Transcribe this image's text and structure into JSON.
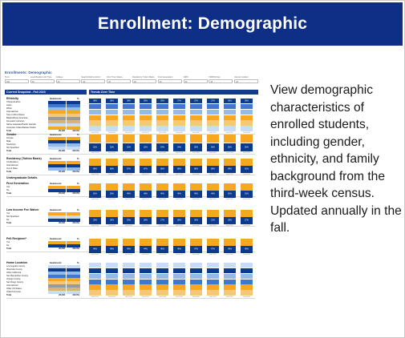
{
  "slide": {
    "title": "Enrollment: Demographic",
    "description": "View demographic characteristics of enrolled students, including gender, ethnicity, and family background from the third-week census. Updated annually in the fall."
  },
  "dashboard": {
    "title": "Enrollments: Demographic",
    "filters": [
      {
        "label": "Term",
        "value": "Fall"
      },
      {
        "label": "Level/Student Attr Type",
        "value": "All"
      },
      {
        "label": "College",
        "value": "All"
      },
      {
        "label": "Search/Add to Admit",
        "value": "All"
      },
      {
        "label": "First Time Status",
        "value": "All"
      },
      {
        "label": "Residency Tuition Basis",
        "value": "All"
      },
      {
        "label": "First Generation",
        "value": "All"
      },
      {
        "label": "URM",
        "value": "All"
      },
      {
        "label": "IS/IB/Citizen",
        "value": "All"
      },
      {
        "label": "Honors student",
        "value": "All"
      }
    ],
    "snapshot_header": "Current Snapshot - Fall 2023",
    "trends_header": "Trends Over Time",
    "column_headers": {
      "headcount": "Headcount",
      "pct": "%"
    },
    "colors": {
      "navy": "#0c3a8c",
      "blue": "#3e78cf",
      "lightblue": "#92bbe8",
      "paleblue": "#c8dcf3",
      "orange": "#f7a823",
      "peach": "#f5c878",
      "grey": "#9a9a9a",
      "tan": "#d8b577",
      "header": "#123a8f"
    },
    "years": [
      "Fall 2014",
      "Fall 2015",
      "Fall 2016",
      "Fall 2017",
      "Fall 2018",
      "Fall 2019",
      "Fall 2020",
      "Fall 2021",
      "Fall 2022",
      "Fall 2023"
    ],
    "groups_title": "Undergraduate Details",
    "sections": [
      {
        "title": "Ethnicity",
        "rows": [
          {
            "label": "Chicano/Latino",
            "value": "",
            "pct": ""
          },
          {
            "label": "Asian",
            "value": "",
            "pct": ""
          },
          {
            "label": "White",
            "value": "",
            "pct": ""
          },
          {
            "label": "International",
            "value": "",
            "pct": ""
          },
          {
            "label": "Two or More Races",
            "value": "",
            "pct": ""
          },
          {
            "label": "Black/African American",
            "value": "",
            "pct": ""
          },
          {
            "label": "Domestic Unknown",
            "value": "",
            "pct": ""
          },
          {
            "label": "Native Hawaiian/Pacific Islander",
            "value": "",
            "pct": ""
          },
          {
            "label": "American Indian/Alaskan Native",
            "value": "",
            "pct": ""
          },
          {
            "label": "Total",
            "value": "26,426",
            "pct": "100.0%"
          }
        ],
        "cell_colors": [
          "navy",
          "blue",
          "lightblue",
          "orange",
          "peach",
          "grey",
          "tan",
          "paleblue",
          "orange",
          "none"
        ],
        "bars": [
          "navy",
          "blue",
          "lightblue",
          "orange",
          "peach",
          "paleblue"
        ],
        "labels": [
          "38%",
          "38%",
          "38%",
          "39%",
          "39%",
          "37%",
          "37%",
          "37%",
          "36%",
          "36%"
        ]
      },
      {
        "title": "Gender",
        "rows": [
          {
            "label": "Female",
            "value": "",
            "pct": ""
          },
          {
            "label": "Male",
            "value": "",
            "pct": ""
          },
          {
            "label": "Nonbinary",
            "value": "",
            "pct": ""
          },
          {
            "label": "Not Specified",
            "value": "",
            "pct": ""
          },
          {
            "label": "Total",
            "value": "26,426",
            "pct": "100.0%"
          }
        ],
        "cell_colors": [
          "orange",
          "navy",
          "lightblue",
          "paleblue",
          "none"
        ],
        "bars": [
          "orange",
          "navy"
        ],
        "labels": [
          "52%",
          "52%",
          "52%",
          "53%",
          "54%",
          "54%",
          "55%",
          "56%",
          "56%",
          "56%"
        ]
      },
      {
        "title": "Residency (Tuition Basis)",
        "rows": [
          {
            "label": "CA Resident",
            "value": "",
            "pct": ""
          },
          {
            "label": "International",
            "value": "",
            "pct": ""
          },
          {
            "label": "Out of State",
            "value": "",
            "pct": ""
          },
          {
            "label": "Total",
            "value": "26,426",
            "pct": "100.0%"
          }
        ],
        "cell_colors": [
          "orange",
          "navy",
          "lightblue",
          "none"
        ],
        "bars": [
          "orange",
          "navy"
        ],
        "labels": [
          "88%",
          "88%",
          "87%",
          "87%",
          "88%",
          "88%",
          "88%",
          "88%",
          "89%",
          "91%"
        ]
      },
      {
        "title": "First Generation",
        "rows": [
          {
            "label": "Yes",
            "value": "",
            "pct": ""
          },
          {
            "label": "No",
            "value": "",
            "pct": ""
          },
          {
            "label": "Total",
            "value": "22,646",
            "pct": "100.0%"
          }
        ],
        "cell_colors": [
          "orange",
          "navy",
          "none"
        ],
        "bars": [
          "orange",
          "navy"
        ],
        "labels": [
          "50%",
          "50%",
          "49%",
          "48%",
          "49%",
          "49%",
          "49%",
          "49%",
          "50%",
          "51%"
        ]
      },
      {
        "title": "Low Income Fee Waiver",
        "rows": [
          {
            "label": "Yes",
            "value": "",
            "pct": ""
          },
          {
            "label": "Not Specified",
            "value": "",
            "pct": ""
          },
          {
            "label": "No",
            "value": "",
            "pct": ""
          },
          {
            "label": "Total",
            "value": "22,646",
            "pct": "100.0%"
          }
        ],
        "cell_colors": [
          "orange",
          "paleblue",
          "navy",
          "none"
        ],
        "bars": [
          "orange",
          "navy"
        ],
        "labels": [
          "29%",
          "30%",
          "29%",
          "28%",
          "27%",
          "28%",
          "30%",
          "31%",
          "28%",
          "27%"
        ]
      },
      {
        "title": "Pell Recipient*",
        "rows": [
          {
            "label": "Yes",
            "value": "",
            "pct": ""
          },
          {
            "label": "No",
            "value": "",
            "pct": ""
          },
          {
            "label": "Total",
            "value": "22,646",
            "pct": "100.0%"
          }
        ],
        "cell_colors": [
          "orange",
          "navy",
          "none"
        ],
        "bars": [
          "orange",
          "navy"
        ],
        "labels": [
          "46%",
          "46%",
          "45%",
          "44%",
          "45%",
          "46%",
          "47%",
          "47%",
          "45%",
          "45%"
        ]
      },
      {
        "title": "Home Location",
        "rows": [
          {
            "label": "Los Angeles County",
            "value": "",
            "pct": ""
          },
          {
            "label": "Riverside County",
            "value": "",
            "pct": ""
          },
          {
            "label": "Other California",
            "value": "",
            "pct": ""
          },
          {
            "label": "San Bernardino County",
            "value": "",
            "pct": ""
          },
          {
            "label": "Orange County",
            "value": "",
            "pct": ""
          },
          {
            "label": "San Diego County",
            "value": "",
            "pct": ""
          },
          {
            "label": "International",
            "value": "",
            "pct": ""
          },
          {
            "label": "Other US States",
            "value": "",
            "pct": ""
          },
          {
            "label": "Other/Unknown",
            "value": "",
            "pct": ""
          },
          {
            "label": "Total",
            "value": "22,646",
            "pct": "100.0%"
          }
        ],
        "cell_colors": [
          "paleblue",
          "navy",
          "lightblue",
          "blue",
          "orange",
          "peach",
          "grey",
          "tan",
          "paleblue",
          "none"
        ],
        "bars": [
          "paleblue",
          "navy",
          "lightblue",
          "blue",
          "orange",
          "peach"
        ],
        "labels": [
          "",
          "",
          "",
          "",
          "",
          "",
          "",
          "",
          "",
          ""
        ]
      }
    ]
  }
}
